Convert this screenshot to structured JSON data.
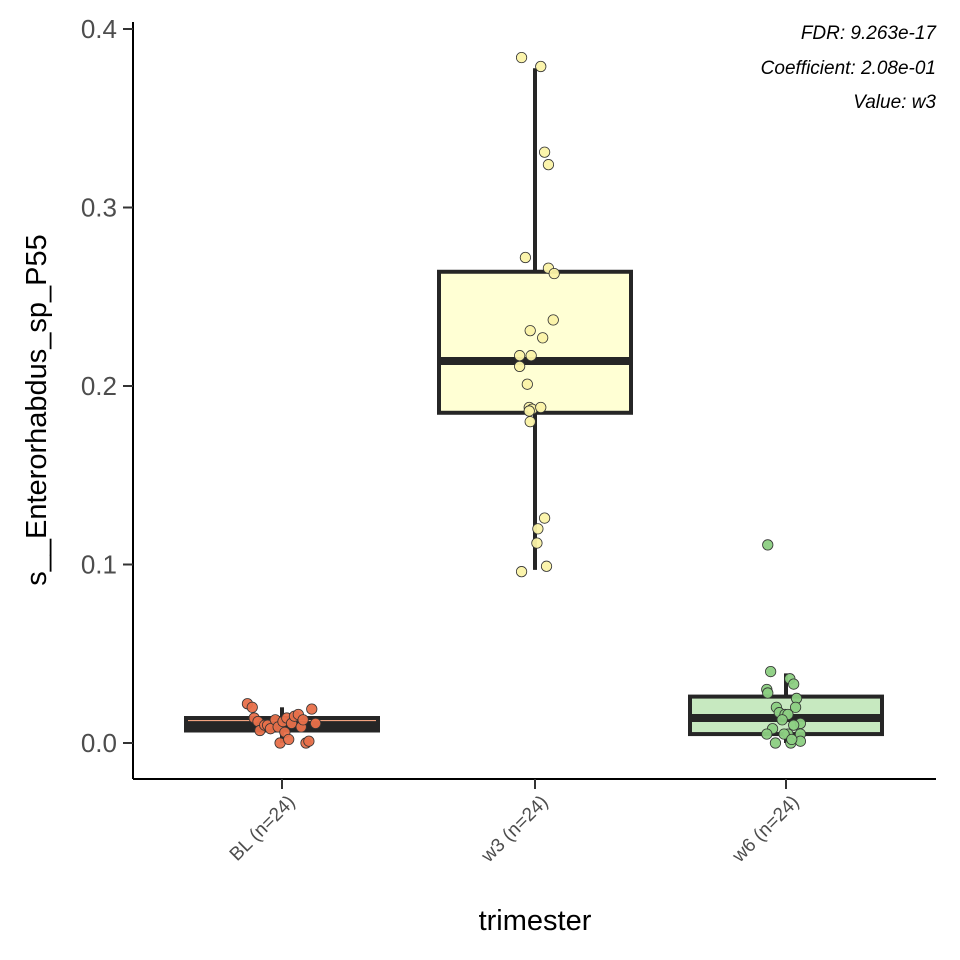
{
  "chart_data": {
    "type": "box",
    "title": "",
    "xlabel": "trimester",
    "ylabel": "s__Enterorhabdus_sp_P55",
    "ylim": [
      -0.019,
      0.405
    ],
    "y_ticks": [
      0.0,
      0.1,
      0.2,
      0.3,
      0.4
    ],
    "y_tick_labels": [
      "0.0",
      "0.1",
      "0.2",
      "0.3",
      "0.4"
    ],
    "grid": false,
    "legend": "none",
    "annotations": [
      "FDR: 9.263e-17",
      "Coefficient: 2.08e-01",
      "Value: w3"
    ],
    "groups": [
      {
        "label": "BL (n=24)",
        "fill": "#f4a582",
        "point_color": "#e8704a",
        "box": {
          "q1": 0.007,
          "median": 0.01,
          "q3": 0.014,
          "whisker_low": 0.0,
          "whisker_high": 0.02
        },
        "points": [
          {
            "x": -0.36,
            "y": 0.022
          },
          {
            "x": -0.31,
            "y": 0.02
          },
          {
            "x": -0.29,
            "y": 0.014
          },
          {
            "x": -0.25,
            "y": 0.012
          },
          {
            "x": -0.23,
            "y": 0.007
          },
          {
            "x": -0.18,
            "y": 0.01
          },
          {
            "x": -0.15,
            "y": 0.01
          },
          {
            "x": -0.12,
            "y": 0.008
          },
          {
            "x": -0.07,
            "y": 0.013
          },
          {
            "x": -0.04,
            "y": 0.009
          },
          {
            "x": -0.02,
            "y": 0.0
          },
          {
            "x": 0.01,
            "y": 0.012
          },
          {
            "x": 0.03,
            "y": 0.006
          },
          {
            "x": 0.05,
            "y": 0.014
          },
          {
            "x": 0.07,
            "y": 0.002
          },
          {
            "x": 0.1,
            "y": 0.011
          },
          {
            "x": 0.13,
            "y": 0.015
          },
          {
            "x": 0.17,
            "y": 0.016
          },
          {
            "x": 0.2,
            "y": 0.009
          },
          {
            "x": 0.22,
            "y": 0.013
          },
          {
            "x": 0.25,
            "y": 0.0
          },
          {
            "x": 0.28,
            "y": 0.001
          },
          {
            "x": 0.31,
            "y": 0.019
          },
          {
            "x": 0.35,
            "y": 0.011
          }
        ]
      },
      {
        "label": "w3 (n=24)",
        "fill": "#ffffd4",
        "point_color": "#fbf3a8",
        "box": {
          "q1": 0.185,
          "median": 0.214,
          "q3": 0.264,
          "whisker_low": 0.097,
          "whisker_high": 0.378
        },
        "points": [
          {
            "x": -0.14,
            "y": 0.384
          },
          {
            "x": 0.06,
            "y": 0.379
          },
          {
            "x": 0.1,
            "y": 0.331
          },
          {
            "x": 0.14,
            "y": 0.324
          },
          {
            "x": -0.1,
            "y": 0.272
          },
          {
            "x": 0.14,
            "y": 0.266
          },
          {
            "x": 0.2,
            "y": 0.263
          },
          {
            "x": 0.19,
            "y": 0.237
          },
          {
            "x": -0.05,
            "y": 0.231
          },
          {
            "x": 0.08,
            "y": 0.227
          },
          {
            "x": -0.16,
            "y": 0.217
          },
          {
            "x": -0.04,
            "y": 0.217
          },
          {
            "x": -0.16,
            "y": 0.211
          },
          {
            "x": -0.08,
            "y": 0.201
          },
          {
            "x": -0.06,
            "y": 0.188
          },
          {
            "x": -0.03,
            "y": 0.187
          },
          {
            "x": 0.06,
            "y": 0.188
          },
          {
            "x": -0.05,
            "y": 0.18
          },
          {
            "x": 0.1,
            "y": 0.126
          },
          {
            "x": 0.03,
            "y": 0.12
          },
          {
            "x": 0.02,
            "y": 0.112
          },
          {
            "x": 0.12,
            "y": 0.099
          },
          {
            "x": -0.14,
            "y": 0.096
          },
          {
            "x": -0.06,
            "y": 0.186
          }
        ]
      },
      {
        "label": "w6 (n=24)",
        "fill": "#c7e9c0",
        "point_color": "#8ccf82",
        "box": {
          "q1": 0.005,
          "median": 0.014,
          "q3": 0.026,
          "whisker_low": 0.0,
          "whisker_high": 0.039
        },
        "points": [
          {
            "x": -0.19,
            "y": 0.111
          },
          {
            "x": -0.16,
            "y": 0.04
          },
          {
            "x": 0.04,
            "y": 0.036
          },
          {
            "x": 0.08,
            "y": 0.033
          },
          {
            "x": -0.2,
            "y": 0.03
          },
          {
            "x": -0.19,
            "y": 0.028
          },
          {
            "x": 0.11,
            "y": 0.025
          },
          {
            "x": -0.1,
            "y": 0.02
          },
          {
            "x": 0.1,
            "y": 0.02
          },
          {
            "x": -0.07,
            "y": 0.017
          },
          {
            "x": -0.01,
            "y": 0.016
          },
          {
            "x": 0.02,
            "y": 0.016
          },
          {
            "x": -0.04,
            "y": 0.013
          },
          {
            "x": 0.15,
            "y": 0.011
          },
          {
            "x": 0.08,
            "y": 0.01
          },
          {
            "x": -0.14,
            "y": 0.008
          },
          {
            "x": -0.2,
            "y": 0.005
          },
          {
            "x": 0.02,
            "y": 0.005
          },
          {
            "x": 0.15,
            "y": 0.005
          },
          {
            "x": -0.11,
            "y": 0.0
          },
          {
            "x": 0.05,
            "y": 0.0
          },
          {
            "x": 0.15,
            "y": 0.001
          },
          {
            "x": -0.02,
            "y": 0.005
          },
          {
            "x": 0.06,
            "y": 0.002
          }
        ]
      }
    ]
  }
}
